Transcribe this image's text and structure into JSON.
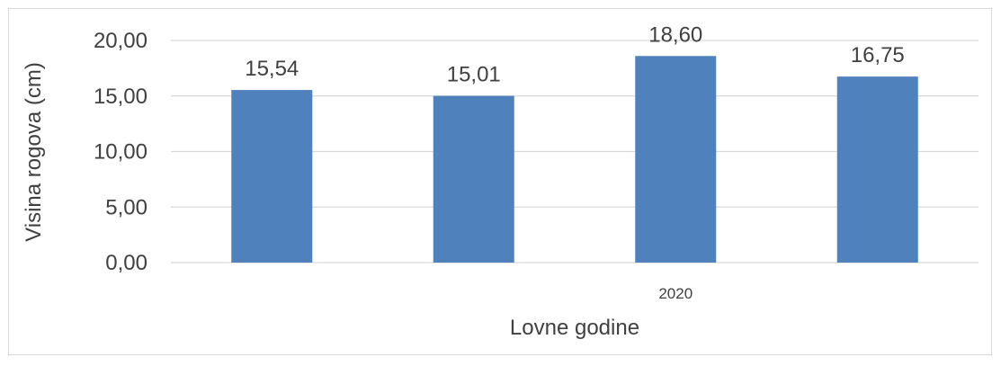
{
  "chart_data": {
    "type": "bar",
    "categories": [
      "",
      "",
      "2020",
      ""
    ],
    "values": [
      15.54,
      15.01,
      18.6,
      16.75
    ],
    "value_labels": [
      "15,54",
      "15,01",
      "18,60",
      "16,75"
    ],
    "ytick_labels": [
      "0,00",
      "5,00",
      "10,00",
      "15,00",
      "20,00"
    ],
    "ytick_values": [
      0,
      5,
      10,
      15,
      20
    ],
    "ylim": [
      0,
      20
    ],
    "xlabel": "Lovne godine",
    "ylabel": "Visina rogova (cm)",
    "grid": true,
    "legend": "none",
    "colors": {
      "bar": "#4f81bd",
      "grid": "#d9d9d9",
      "text": "#404040"
    }
  }
}
